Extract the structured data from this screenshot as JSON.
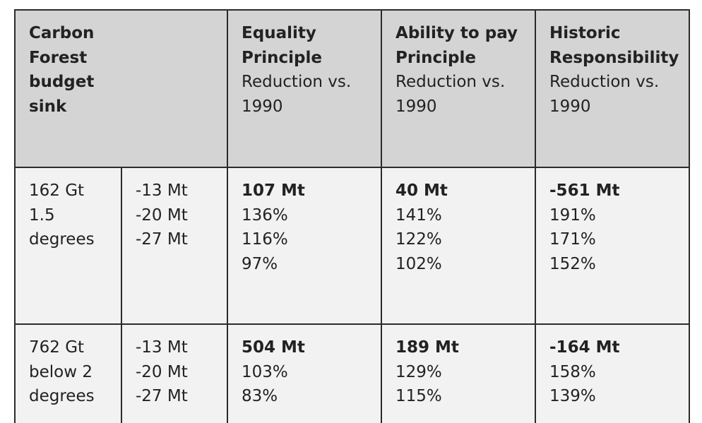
{
  "header": {
    "col1_lines": [
      "Carbon",
      "Forest",
      "budget",
      "sink"
    ],
    "equality": {
      "title_lines": [
        "Equality",
        "Principle"
      ],
      "sub_lines": [
        "Reduction vs.",
        "1990"
      ]
    },
    "ability": {
      "title_lines": [
        "Ability to pay",
        "Principle"
      ],
      "sub_lines": [
        "Reduction vs.",
        "1990"
      ]
    },
    "historic": {
      "title_lines": [
        "Historic",
        "Responsibility"
      ],
      "sub_lines": [
        "Reduction vs.",
        "1990"
      ]
    }
  },
  "rows": [
    {
      "budget_lines": [
        "162 Gt",
        "1.5",
        "degrees"
      ],
      "sink": [
        "-13 Mt",
        "-20 Mt",
        "-27 Mt"
      ],
      "equality": {
        "total": "107 Mt",
        "values": [
          "136%",
          "116%",
          "97%"
        ]
      },
      "ability": {
        "total": "40 Mt",
        "values": [
          "141%",
          "122%",
          "102%"
        ]
      },
      "historic": {
        "total": "-561 Mt",
        "values": [
          "191%",
          "171%",
          "152%"
        ]
      }
    },
    {
      "budget_lines": [
        "762 Gt",
        "below 2",
        "degrees"
      ],
      "sink": [
        "-13 Mt",
        "-20 Mt",
        "-27 Mt"
      ],
      "equality": {
        "total": "504 Mt",
        "values": [
          "103%",
          "83%"
        ]
      },
      "ability": {
        "total": "189 Mt",
        "values": [
          "129%",
          "115%"
        ]
      },
      "historic": {
        "total": "-164 Mt",
        "values": [
          "158%",
          "139%"
        ]
      }
    }
  ]
}
